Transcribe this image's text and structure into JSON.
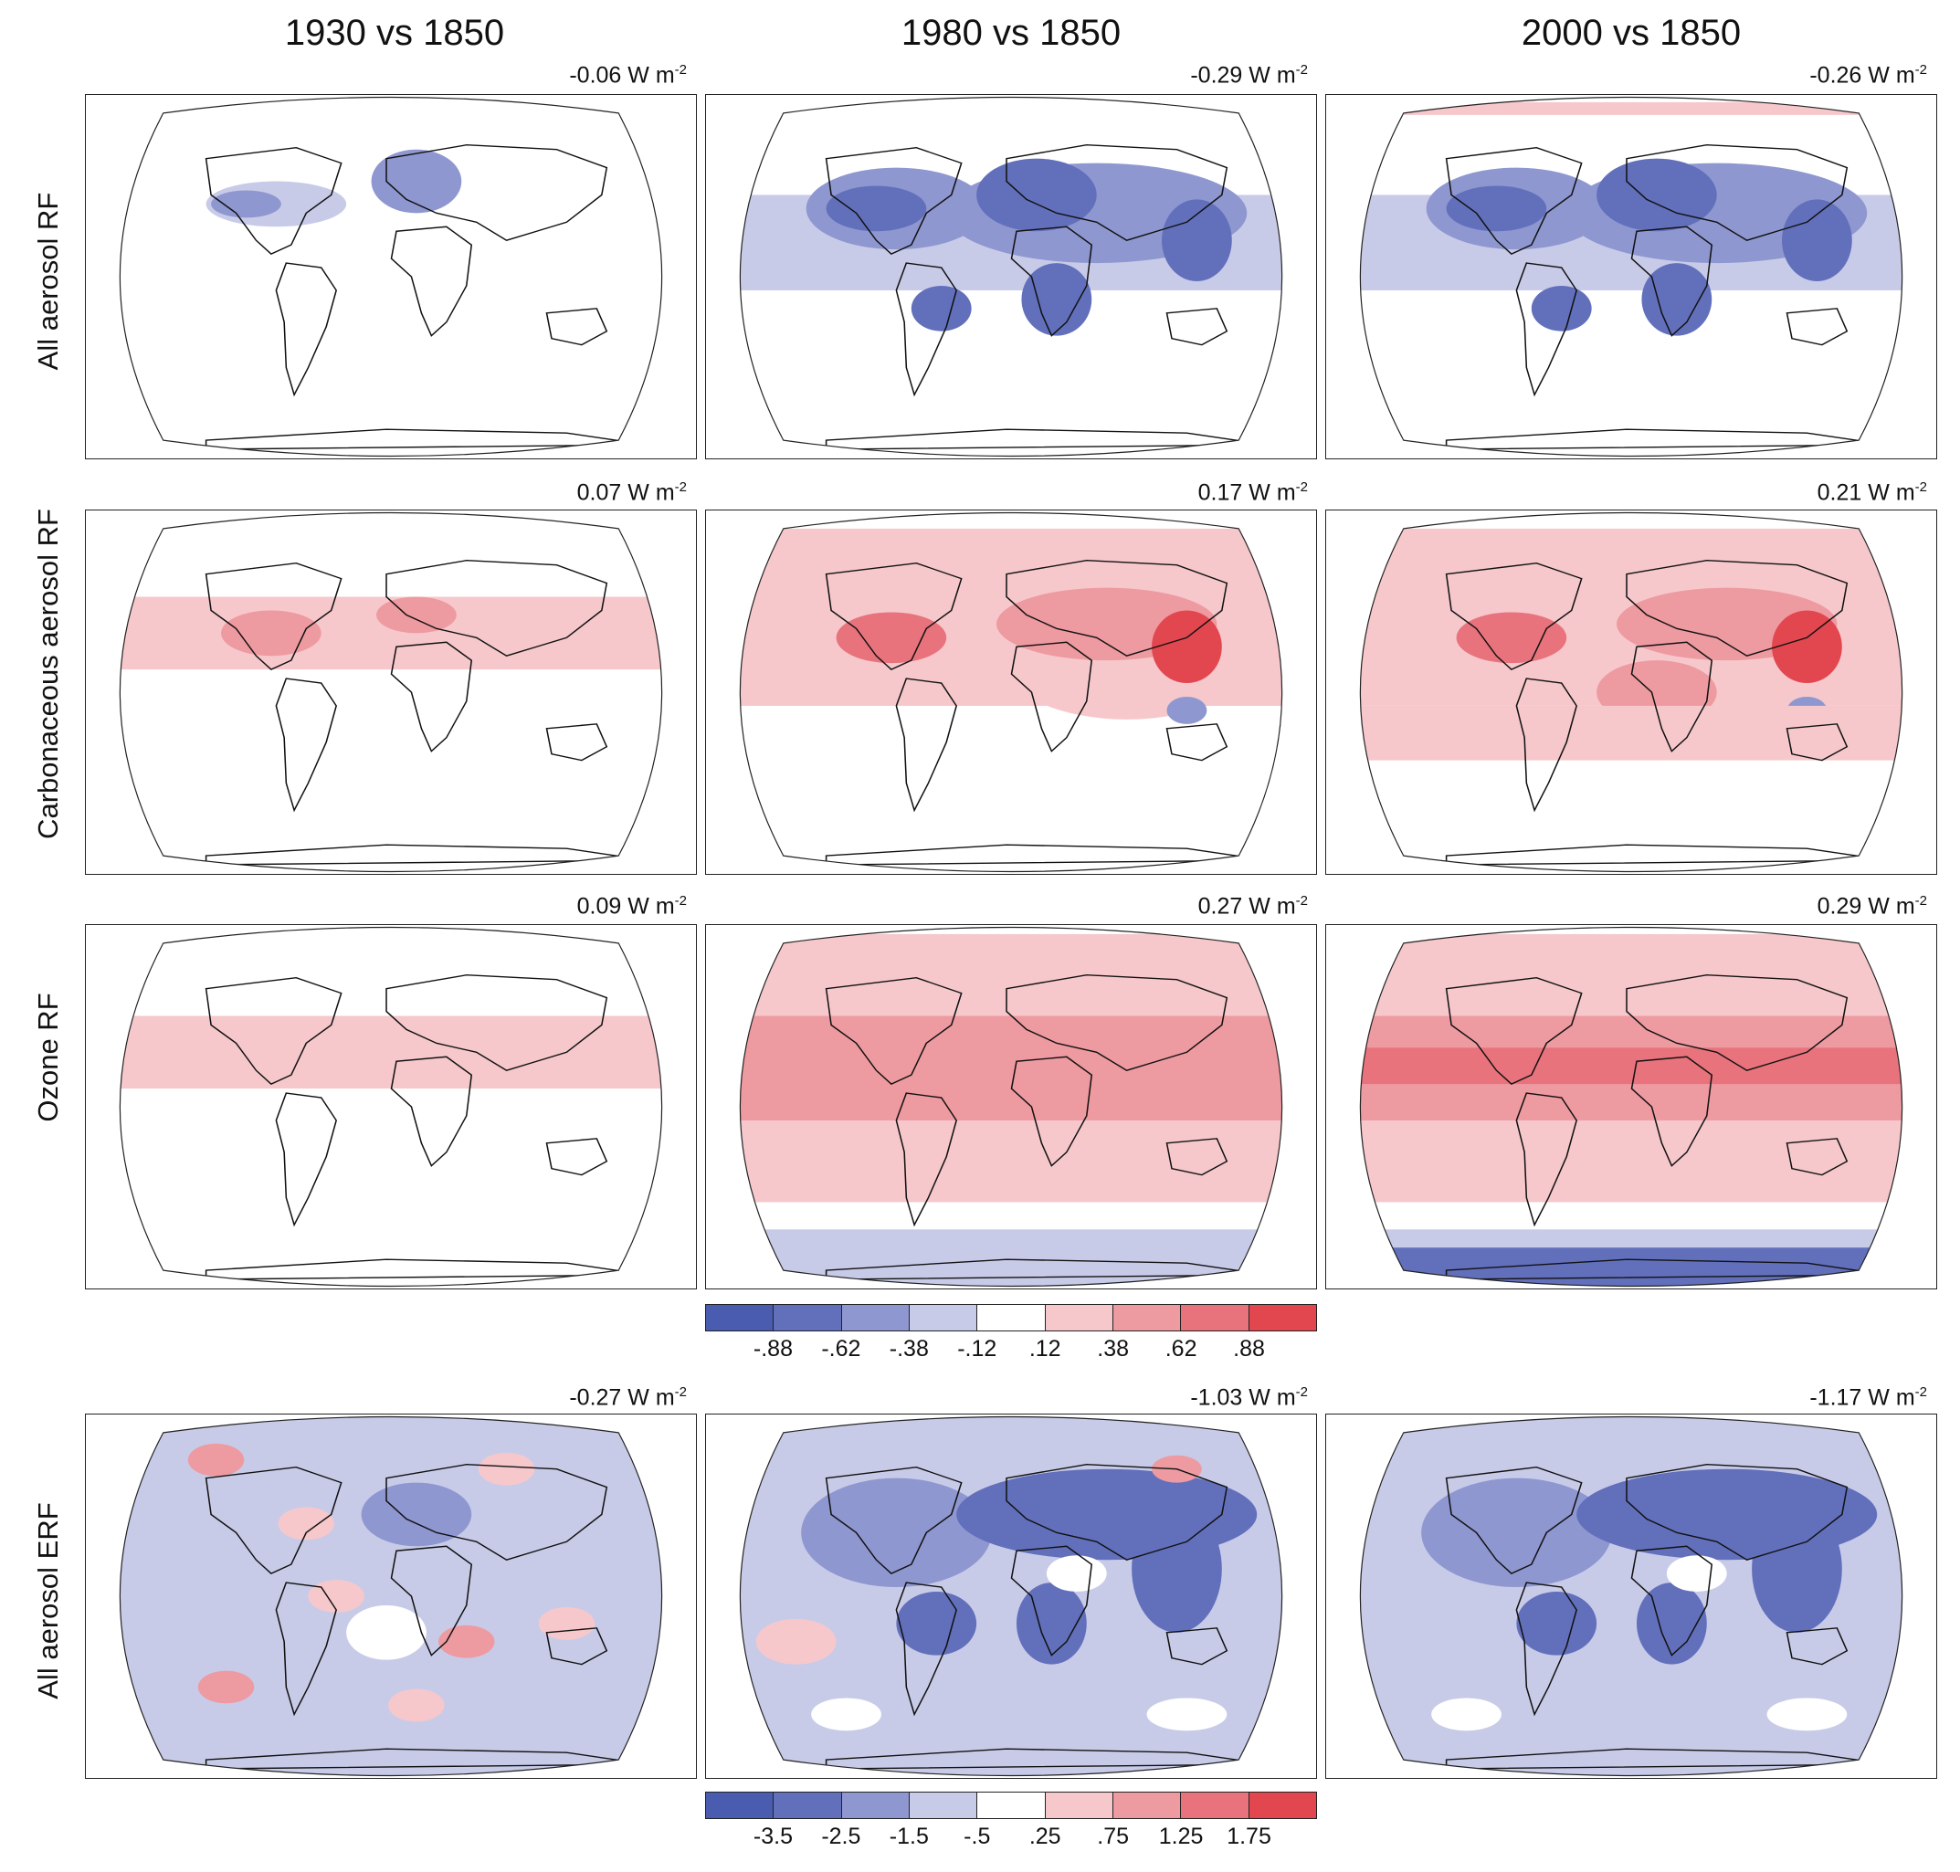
{
  "columns": [
    "1930 vs 1850",
    "1980 vs 1850",
    "2000 vs 1850"
  ],
  "rows": [
    {
      "label": "All aerosol RF",
      "values": [
        "-0.06",
        "-0.29",
        "-0.26"
      ]
    },
    {
      "label": "Carbonaceous aerosol RF",
      "values": [
        "0.07",
        "0.17",
        "0.21"
      ]
    },
    {
      "label": "Ozone RF",
      "values": [
        "0.09",
        "0.27",
        "0.29"
      ]
    },
    {
      "label": "All aerosol ERF",
      "values": [
        "-0.27",
        "-1.03",
        "-1.17"
      ]
    }
  ],
  "unit_text": "W m",
  "unit_exp": "-2",
  "colorbar_rf": {
    "ticks": [
      "-.88",
      "-.62",
      "-.38",
      "-.12",
      ".12",
      ".38",
      ".62",
      ".88"
    ],
    "colors": [
      "#4a5cb0",
      "#6270bc",
      "#8e97d0",
      "#c8cbe8",
      "#ffffff",
      "#f6c8cc",
      "#ee9aa1",
      "#e8737c",
      "#e2474f"
    ]
  },
  "colorbar_erf": {
    "ticks": [
      "-3.5",
      "-2.5",
      "-1.5",
      "-.5",
      ".25",
      ".75",
      "1.25",
      "1.75"
    ],
    "colors": [
      "#4a5cb0",
      "#6270bc",
      "#8e97d0",
      "#c8cbe8",
      "#ffffff",
      "#f6c8cc",
      "#ee9aa1",
      "#e8737c",
      "#e2474f"
    ]
  },
  "chart_data": {
    "type": "heatmap",
    "title": "",
    "columns": [
      "1930 vs 1850",
      "1980 vs 1850",
      "2000 vs 1850"
    ],
    "series": [
      {
        "name": "All aerosol RF",
        "values": [
          -0.06,
          -0.29,
          -0.26
        ]
      },
      {
        "name": "Carbonaceous aerosol RF",
        "values": [
          0.07,
          0.17,
          0.21
        ]
      },
      {
        "name": "Ozone RF",
        "values": [
          0.09,
          0.27,
          0.29
        ]
      },
      {
        "name": "All aerosol ERF",
        "values": [
          -0.27,
          -1.03,
          -1.17
        ]
      }
    ],
    "units": "W m-2",
    "colorbar_rf_ticks": [
      -0.88,
      -0.62,
      -0.38,
      -0.12,
      0.12,
      0.38,
      0.62,
      0.88
    ],
    "colorbar_erf_ticks": [
      -3.5,
      -2.5,
      -1.5,
      -0.5,
      0.25,
      0.75,
      1.25,
      1.75
    ]
  }
}
